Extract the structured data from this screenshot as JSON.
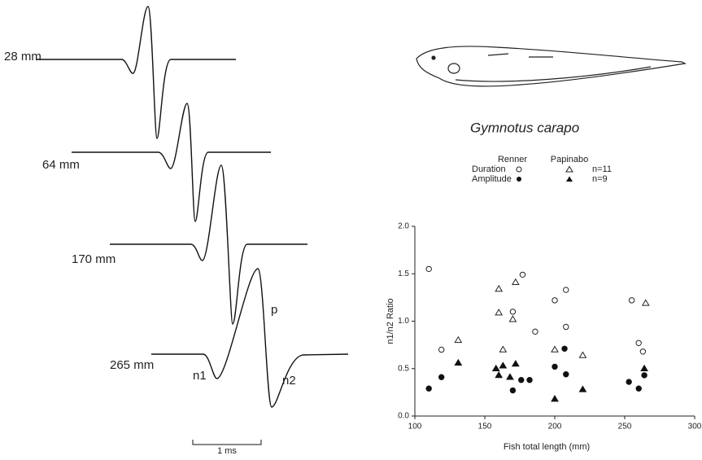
{
  "waveforms": {
    "labels": [
      "28 mm",
      "64 mm",
      "170 mm",
      "265 mm"
    ],
    "peak_labels": [
      "p",
      "n1",
      "n2"
    ],
    "scale_bar": "1 ms"
  },
  "fish": {
    "caption": "Gymnotus carapo"
  },
  "legend": {
    "columns": [
      "Renner",
      "Papinabo"
    ],
    "rows": [
      "Duration",
      "Amplitude"
    ],
    "counts": [
      "n=11",
      "n=9"
    ]
  },
  "chart_data": {
    "type": "scatter",
    "x_label": "Fish total length (mm)",
    "y_label": "n1/n2 Ratio",
    "xlim": [
      100,
      300
    ],
    "xticks": [
      100,
      150,
      200,
      250,
      300
    ],
    "ylim": [
      0,
      2
    ],
    "yticks": [
      {
        "value": 0,
        "label": "0.0"
      },
      {
        "value": 0.5,
        "label": "0.5"
      },
      {
        "value": 1,
        "label": "1.0"
      },
      {
        "value": 1.5,
        "label": "1.5"
      },
      {
        "value": 2,
        "label": "2.0"
      }
    ],
    "series": [
      {
        "marker": "open-circle",
        "color": "#222",
        "x": [
          110,
          119,
          170,
          177,
          186,
          200,
          208,
          208,
          255,
          260,
          263
        ],
        "values": [
          1.55,
          0.7,
          1.1,
          1.49,
          0.89,
          1.22,
          1.33,
          0.94,
          1.22,
          0.77,
          0.68
        ]
      },
      {
        "marker": "open-triangle",
        "color": "#222",
        "x": [
          131,
          160,
          160,
          163,
          170,
          172,
          200,
          220,
          265
        ],
        "values": [
          0.8,
          1.34,
          1.09,
          0.7,
          1.02,
          1.41,
          0.7,
          0.64,
          1.19
        ]
      },
      {
        "marker": "filled-circle",
        "color": "#111",
        "x": [
          110,
          119,
          170,
          176,
          182,
          200,
          207,
          208,
          253,
          260,
          264
        ],
        "values": [
          0.29,
          0.41,
          0.27,
          0.38,
          0.38,
          0.52,
          0.71,
          0.44,
          0.36,
          0.29,
          0.43
        ]
      },
      {
        "marker": "filled-triangle",
        "color": "#111",
        "x": [
          131,
          158,
          160,
          163,
          168,
          172,
          200,
          220,
          264
        ],
        "values": [
          0.56,
          0.5,
          0.43,
          0.53,
          0.41,
          0.55,
          0.18,
          0.28,
          0.5
        ]
      }
    ]
  }
}
